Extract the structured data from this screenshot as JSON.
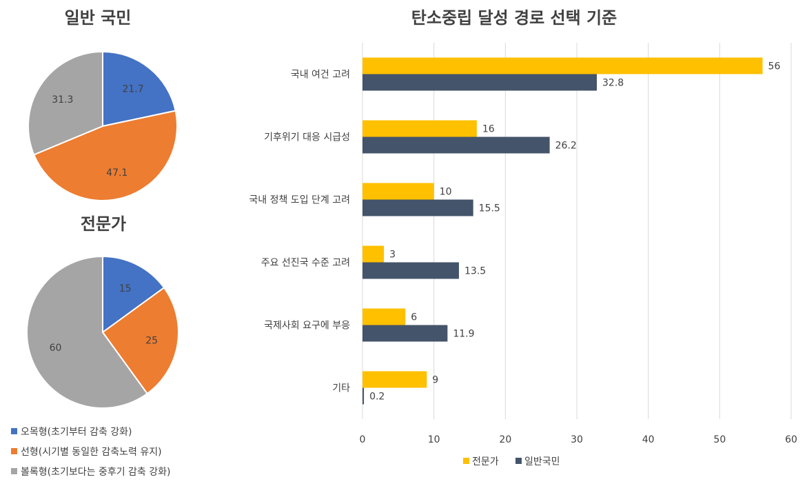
{
  "chart_data": [
    {
      "type": "pie",
      "title": "일반 국민",
      "slices": [
        {
          "label": "오목형(초기부터 감축 강화)",
          "value": 21.7,
          "color": "#4472C4"
        },
        {
          "label": "선형(시기별 동일한 감축노력 유지)",
          "value": 47.1,
          "color": "#ED7D31"
        },
        {
          "label": "볼록형(초기보다는 중후기 감축 강화)",
          "value": 31.3,
          "color": "#A5A5A5"
        }
      ]
    },
    {
      "type": "pie",
      "title": "전문가",
      "slices": [
        {
          "label": "오목형(초기부터 감축 강화)",
          "value": 15,
          "color": "#4472C4"
        },
        {
          "label": "선형(시기별 동일한 감축노력 유지)",
          "value": 25,
          "color": "#ED7D31"
        },
        {
          "label": "볼록형(초기보다는 중후기 감축 강화)",
          "value": 60,
          "color": "#A5A5A5"
        }
      ]
    },
    {
      "type": "bar",
      "orientation": "horizontal",
      "title": "탄소중립 달성 경로 선택 기준",
      "categories": [
        "국내 여건 고려",
        "기후위기 대응 시급성",
        "국내 정책 도입 단계 고려",
        "주요 선진국 수준 고려",
        "국제사회 요구에 부응",
        "기타"
      ],
      "series": [
        {
          "name": "전문가",
          "values": [
            56,
            16,
            10,
            3,
            6,
            9
          ],
          "color": "#FFC000"
        },
        {
          "name": "일반국민",
          "values": [
            32.8,
            26.2,
            15.5,
            13.5,
            11.9,
            0.2
          ],
          "color": "#44546A"
        }
      ],
      "xlim": [
        0,
        60
      ],
      "xticks": [
        0,
        10,
        20,
        30,
        40,
        50,
        60
      ],
      "grid": true,
      "legend_position": "bottom"
    }
  ],
  "pie_legend": [
    {
      "label": "오목형(초기부터 감축 강화)",
      "color": "#4472C4"
    },
    {
      "label": "선형(시기별 동일한 감축노력 유지)",
      "color": "#ED7D31"
    },
    {
      "label": "볼록형(초기보다는 중후기 감축 강화)",
      "color": "#A5A5A5"
    }
  ]
}
